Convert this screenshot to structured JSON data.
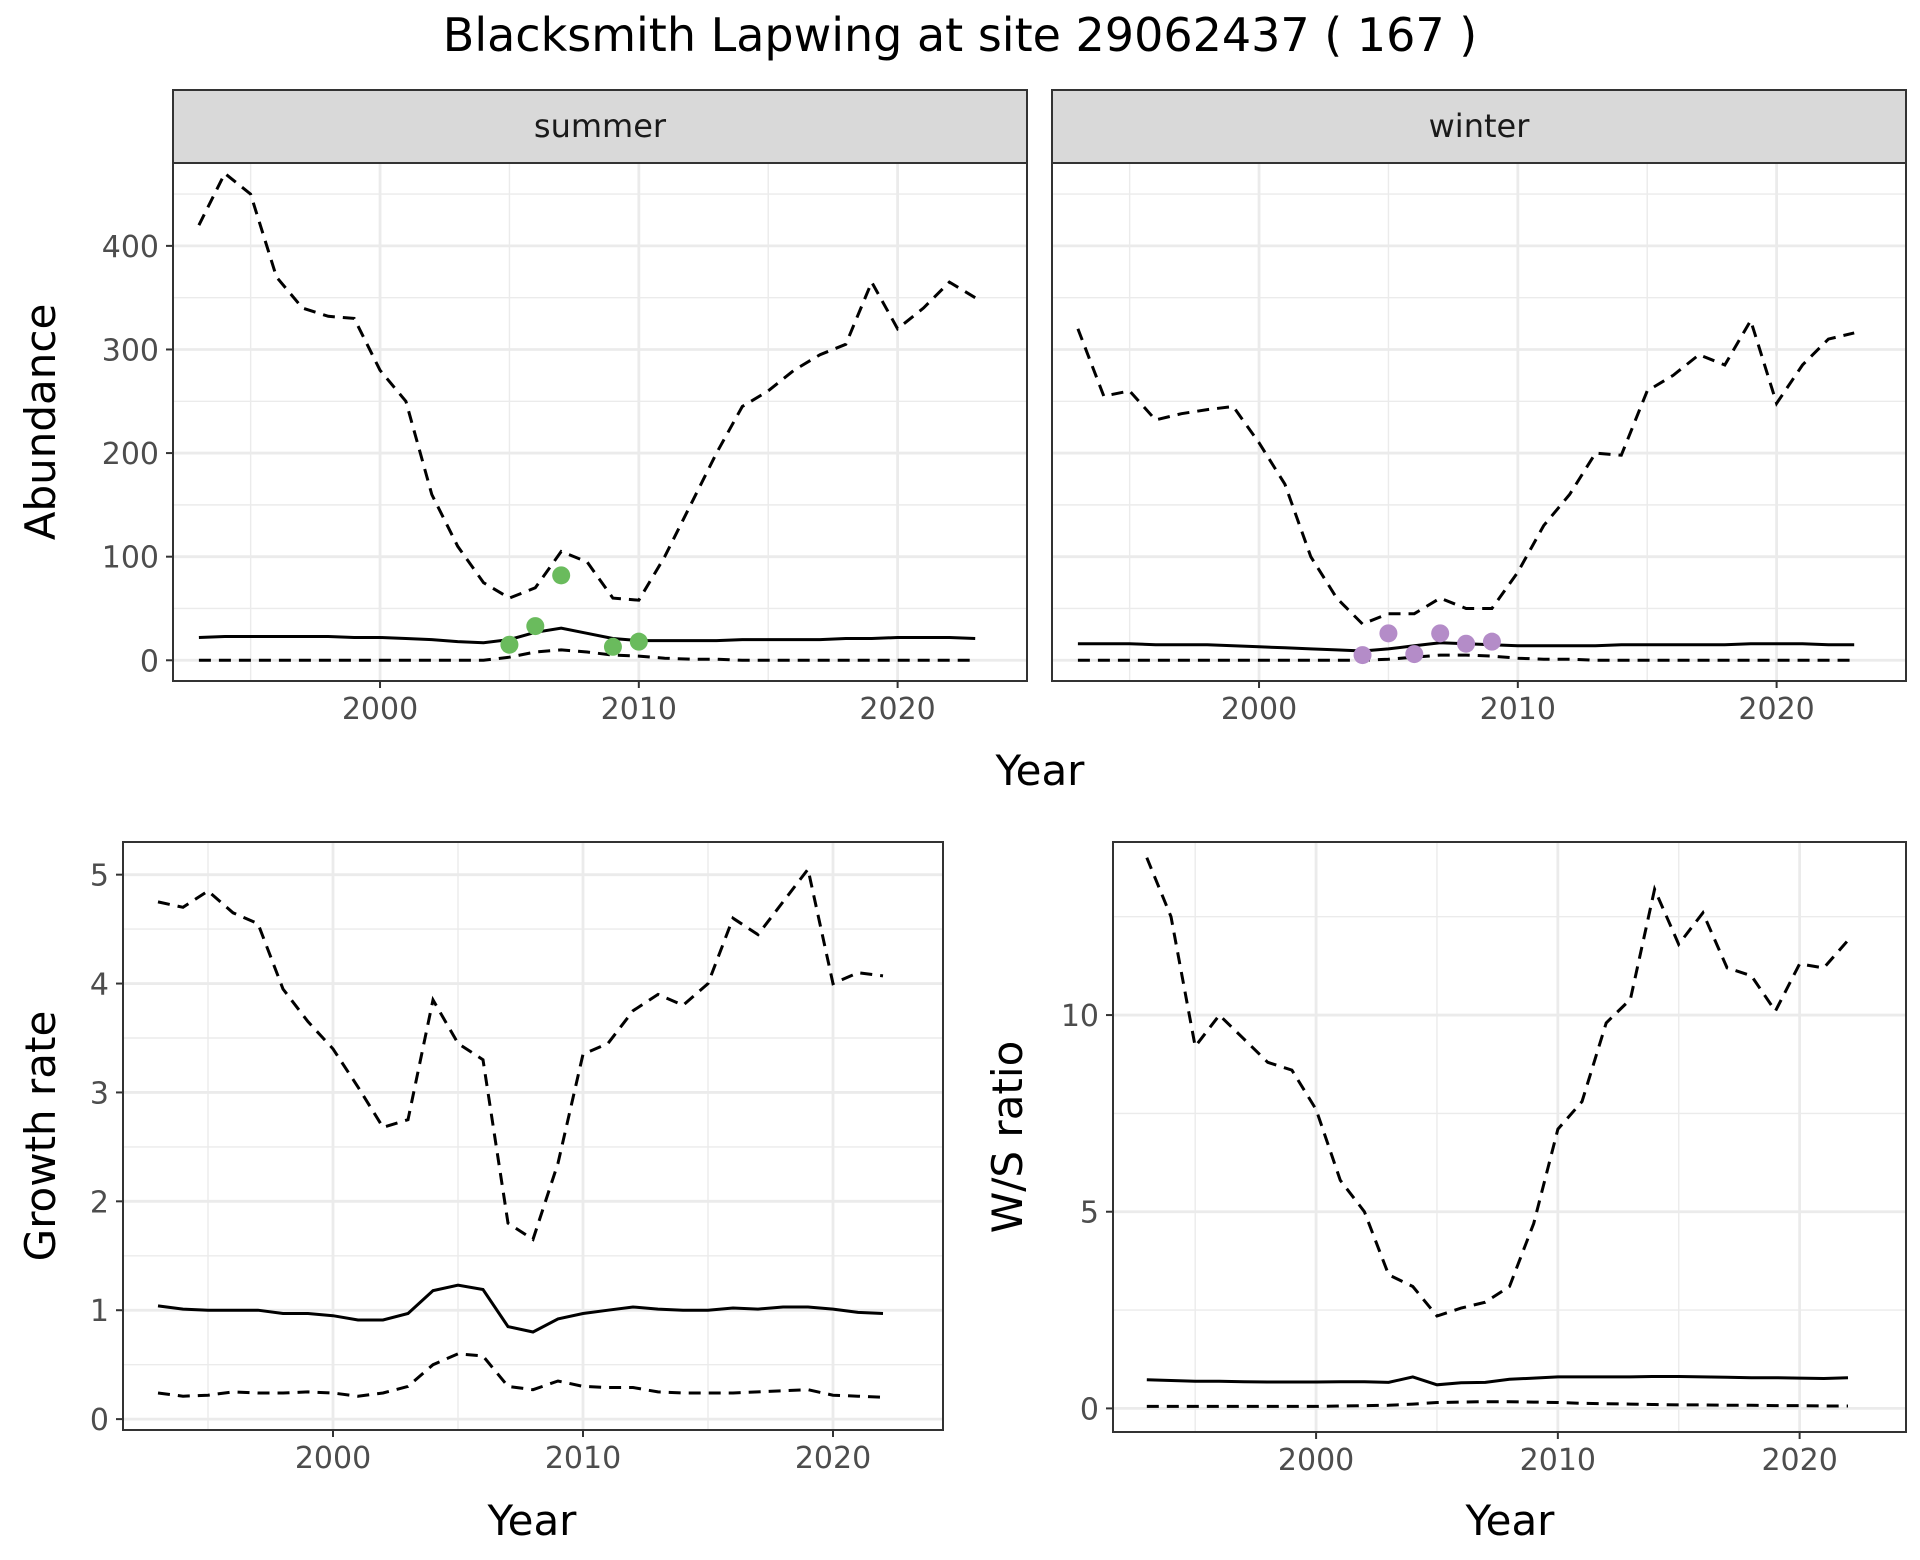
{
  "title": "Blacksmith Lapwing at site 29062437 ( 167 )",
  "colors": {
    "summer_points": "#6ABB5D",
    "winter_points": "#B48CC8",
    "lines": "#000000",
    "strip_fill": "#D9D9D9",
    "grid": "#EBEBEB"
  },
  "chart_data": [
    {
      "type": "line",
      "panel": "abundance",
      "ylabel": "Abundance",
      "xlabel": "Year",
      "xlim": [
        1992,
        2025
      ],
      "ylim": [
        -20,
        480
      ],
      "x_ticks": [
        2000,
        2010,
        2020
      ],
      "y_ticks": [
        0,
        100,
        200,
        300,
        400
      ],
      "facets": [
        {
          "strip": "summer",
          "x": [
            1993,
            1994,
            1995,
            1996,
            1997,
            1998,
            1999,
            2000,
            2001,
            2002,
            2003,
            2004,
            2005,
            2006,
            2007,
            2008,
            2009,
            2010,
            2011,
            2012,
            2013,
            2014,
            2015,
            2016,
            2017,
            2018,
            2019,
            2020,
            2021,
            2022,
            2023
          ],
          "mean": [
            22,
            23,
            23,
            23,
            23,
            23,
            22,
            22,
            21,
            20,
            18,
            17,
            20,
            27,
            31,
            26,
            21,
            19,
            19,
            19,
            19,
            20,
            20,
            20,
            20,
            21,
            21,
            22,
            22,
            22,
            21
          ],
          "upper": [
            420,
            470,
            450,
            370,
            340,
            332,
            330,
            280,
            250,
            160,
            110,
            75,
            60,
            70,
            105,
            95,
            60,
            58,
            100,
            150,
            200,
            245,
            260,
            280,
            295,
            305,
            365,
            320,
            340,
            365,
            350
          ],
          "lower": [
            0,
            0,
            0,
            0,
            0,
            0,
            0,
            0,
            0,
            0,
            0,
            0,
            3,
            8,
            10,
            8,
            5,
            4,
            2,
            1,
            1,
            0,
            0,
            0,
            0,
            0,
            0,
            0,
            0,
            0,
            0
          ],
          "points_x": [
            2005,
            2006,
            2007,
            2009,
            2010
          ],
          "points_y": [
            15,
            33,
            82,
            13,
            18
          ]
        },
        {
          "strip": "winter",
          "x": [
            1993,
            1994,
            1995,
            1996,
            1997,
            1998,
            1999,
            2000,
            2001,
            2002,
            2003,
            2004,
            2005,
            2006,
            2007,
            2008,
            2009,
            2010,
            2011,
            2012,
            2013,
            2014,
            2015,
            2016,
            2017,
            2018,
            2019,
            2020,
            2021,
            2022,
            2023
          ],
          "mean": [
            16,
            16,
            16,
            15,
            15,
            15,
            14,
            13,
            12,
            11,
            10,
            9,
            11,
            14,
            17,
            16,
            15,
            14,
            14,
            14,
            14,
            15,
            15,
            15,
            15,
            15,
            16,
            16,
            16,
            15,
            15
          ],
          "upper": [
            320,
            255,
            260,
            232,
            238,
            242,
            245,
            210,
            170,
            100,
            60,
            35,
            45,
            45,
            60,
            50,
            50,
            85,
            130,
            160,
            200,
            198,
            260,
            275,
            295,
            285,
            328,
            248,
            285,
            310,
            316
          ],
          "lower": [
            0,
            0,
            0,
            0,
            0,
            0,
            0,
            0,
            0,
            0,
            0,
            0,
            1,
            3,
            5,
            5,
            4,
            2,
            1,
            1,
            0,
            0,
            0,
            0,
            0,
            0,
            0,
            0,
            0,
            0,
            0
          ],
          "points_x": [
            2004,
            2005,
            2006,
            2007,
            2008,
            2009
          ],
          "points_y": [
            5,
            26,
            6,
            26,
            16,
            18
          ]
        }
      ]
    },
    {
      "type": "line",
      "panel": "growth",
      "ylabel": "Growth rate",
      "xlabel": "Year",
      "xlim": [
        1991.6,
        2024.4
      ],
      "ylim": [
        -0.1,
        5.3
      ],
      "x_ticks": [
        2000,
        2010,
        2020
      ],
      "y_ticks": [
        0,
        1,
        2,
        3,
        4,
        5
      ],
      "x": [
        1993,
        1994,
        1995,
        1996,
        1997,
        1998,
        1999,
        2000,
        2001,
        2002,
        2003,
        2004,
        2005,
        2006,
        2007,
        2008,
        2009,
        2010,
        2011,
        2012,
        2013,
        2014,
        2015,
        2016,
        2017,
        2018,
        2019,
        2020,
        2021,
        2022
      ],
      "mean": [
        1.04,
        1.01,
        1.0,
        1.0,
        1.0,
        0.97,
        0.97,
        0.95,
        0.91,
        0.91,
        0.97,
        1.18,
        1.23,
        1.19,
        0.85,
        0.8,
        0.92,
        0.97,
        1.0,
        1.03,
        1.01,
        1.0,
        1.0,
        1.02,
        1.01,
        1.03,
        1.03,
        1.01,
        0.98,
        0.97
      ],
      "upper": [
        4.75,
        4.7,
        4.85,
        4.65,
        4.55,
        3.95,
        3.65,
        3.4,
        3.05,
        2.68,
        2.75,
        3.85,
        3.45,
        3.3,
        1.8,
        1.65,
        2.35,
        3.35,
        3.45,
        3.75,
        3.9,
        3.8,
        4.0,
        4.6,
        4.45,
        4.75,
        5.05,
        4.0,
        4.1,
        4.07
      ],
      "lower": [
        0.24,
        0.21,
        0.22,
        0.25,
        0.24,
        0.24,
        0.25,
        0.24,
        0.21,
        0.24,
        0.3,
        0.5,
        0.6,
        0.58,
        0.3,
        0.27,
        0.35,
        0.3,
        0.29,
        0.29,
        0.25,
        0.24,
        0.24,
        0.24,
        0.25,
        0.26,
        0.27,
        0.22,
        0.21,
        0.2
      ]
    },
    {
      "type": "line",
      "panel": "ratio",
      "ylabel": "W/S ratio",
      "xlabel": "Year",
      "xlim": [
        1991.6,
        2024.4
      ],
      "ylim": [
        -0.6,
        14.4
      ],
      "x_ticks": [
        2000,
        2010,
        2020
      ],
      "y_ticks": [
        0,
        5,
        10
      ],
      "x": [
        1993,
        1994,
        1995,
        1996,
        1997,
        1998,
        1999,
        2000,
        2001,
        2002,
        2003,
        2004,
        2005,
        2006,
        2007,
        2008,
        2009,
        2010,
        2011,
        2012,
        2013,
        2014,
        2015,
        2016,
        2017,
        2018,
        2019,
        2020,
        2021,
        2022
      ],
      "mean": [
        0.73,
        0.71,
        0.69,
        0.69,
        0.68,
        0.67,
        0.67,
        0.67,
        0.68,
        0.68,
        0.66,
        0.8,
        0.6,
        0.65,
        0.66,
        0.74,
        0.77,
        0.8,
        0.8,
        0.8,
        0.8,
        0.81,
        0.81,
        0.8,
        0.79,
        0.78,
        0.78,
        0.77,
        0.76,
        0.78
      ],
      "upper": [
        14,
        12.5,
        9.2,
        10,
        9.4,
        8.8,
        8.6,
        7.6,
        5.8,
        5.0,
        3.4,
        3.1,
        2.35,
        2.55,
        2.7,
        3.1,
        4.7,
        7.1,
        7.8,
        9.8,
        10.4,
        13.2,
        11.8,
        12.6,
        11.2,
        11.0,
        10.1,
        11.3,
        11.2,
        11.9
      ],
      "lower": [
        0.05,
        0.05,
        0.05,
        0.05,
        0.05,
        0.05,
        0.05,
        0.05,
        0.06,
        0.07,
        0.08,
        0.11,
        0.15,
        0.16,
        0.17,
        0.17,
        0.16,
        0.15,
        0.13,
        0.12,
        0.11,
        0.1,
        0.09,
        0.09,
        0.08,
        0.08,
        0.07,
        0.07,
        0.06,
        0.06
      ]
    }
  ]
}
